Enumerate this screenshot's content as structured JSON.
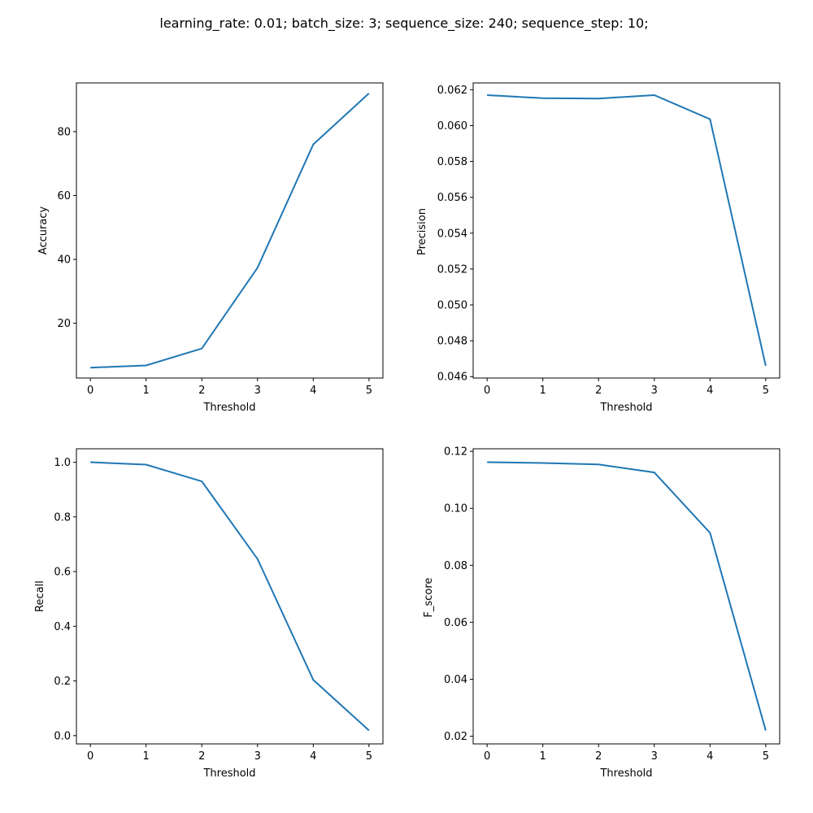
{
  "figure": {
    "suptitle": "learning_rate: 0.01; batch_size: 3; sequence_size: 240; sequence_step: 10;",
    "line_color": "#1f77b4"
  },
  "chart_data": [
    {
      "type": "line",
      "xlabel": "Threshold",
      "ylabel": "Accuracy",
      "x": [
        0,
        1,
        2,
        3,
        4,
        5
      ],
      "series": [
        {
          "values": [
            6.1,
            6.8,
            12.1,
            37.4,
            76.0,
            92.0
          ]
        }
      ],
      "xlim": [
        -0.25,
        5.25
      ],
      "ylim": [
        2.85,
        95.25
      ],
      "xticks": [
        0,
        1,
        2,
        3,
        4,
        5
      ],
      "yticks": [
        20,
        40,
        60,
        80
      ],
      "ytick_labels": [
        "20",
        "40",
        "60",
        "80"
      ],
      "grid": false
    },
    {
      "type": "line",
      "xlabel": "Threshold",
      "ylabel": "Precision",
      "x": [
        0,
        1,
        2,
        3,
        4,
        5
      ],
      "series": [
        {
          "values": [
            0.0617,
            0.06153,
            0.06151,
            0.0617,
            0.06036,
            0.0466
          ]
        }
      ],
      "xlim": [
        -0.25,
        5.25
      ],
      "ylim": [
        0.04592,
        0.06238
      ],
      "xticks": [
        0,
        1,
        2,
        3,
        4,
        5
      ],
      "yticks": [
        0.046,
        0.048,
        0.05,
        0.052,
        0.054,
        0.056,
        0.058,
        0.06,
        0.062
      ],
      "ytick_labels": [
        "0.046",
        "0.048",
        "0.050",
        "0.052",
        "0.054",
        "0.056",
        "0.058",
        "0.060",
        "0.062"
      ],
      "grid": false
    },
    {
      "type": "line",
      "xlabel": "Threshold",
      "ylabel": "Recall",
      "x": [
        0,
        1,
        2,
        3,
        4,
        5
      ],
      "series": [
        {
          "values": [
            1.0,
            0.991,
            0.93,
            0.646,
            0.204,
            0.019
          ]
        }
      ],
      "xlim": [
        -0.25,
        5.25
      ],
      "ylim": [
        -0.0302,
        1.0491
      ],
      "xticks": [
        0,
        1,
        2,
        3,
        4,
        5
      ],
      "yticks": [
        0,
        0.2,
        0.4,
        0.6,
        0.8,
        1.0
      ],
      "ytick_labels": [
        "0.0",
        "0.2",
        "0.4",
        "0.6",
        "0.8",
        "1.0"
      ],
      "grid": false
    },
    {
      "type": "line",
      "xlabel": "Threshold",
      "ylabel": "F_score",
      "x": [
        0,
        1,
        2,
        3,
        4,
        5
      ],
      "series": [
        {
          "values": [
            0.1162,
            0.1159,
            0.1154,
            0.1126,
            0.0914,
            0.022
          ]
        }
      ],
      "xlim": [
        -0.25,
        5.25
      ],
      "ylim": [
        0.0173,
        0.1209
      ],
      "xticks": [
        0,
        1,
        2,
        3,
        4,
        5
      ],
      "yticks": [
        0.02,
        0.04,
        0.06,
        0.08,
        0.1,
        0.12
      ],
      "ytick_labels": [
        "0.02",
        "0.04",
        "0.06",
        "0.08",
        "0.10",
        "0.12"
      ],
      "grid": false
    }
  ]
}
